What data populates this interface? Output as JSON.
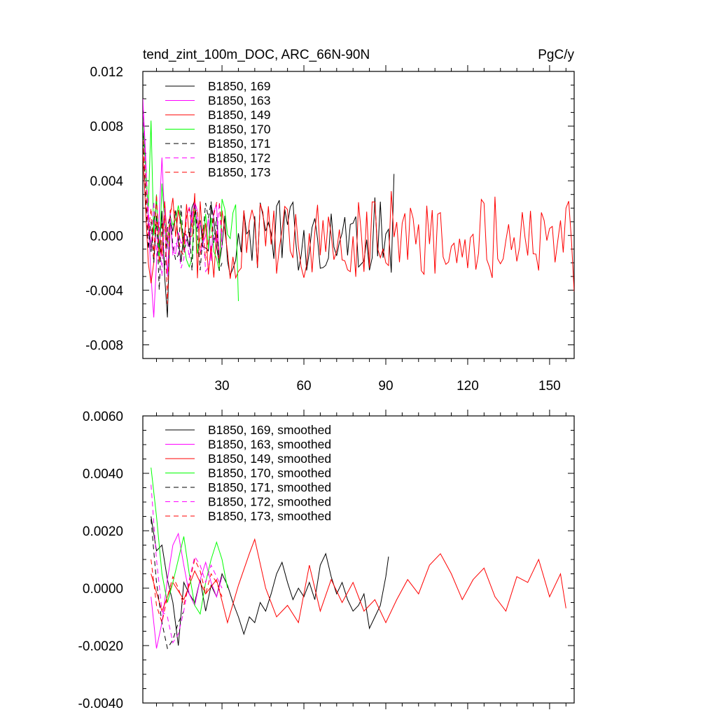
{
  "chart_data": [
    {
      "type": "line",
      "title_left": "tend_zint_100m_DOC, ARC_66N-90N",
      "title_right": "PgC/y",
      "xlabel": "",
      "ylabel": "",
      "xlim": [
        1,
        159
      ],
      "ylim": [
        -0.009,
        0.012
      ],
      "yticks": [
        -0.008,
        -0.004,
        0.0,
        0.004,
        0.008,
        0.012
      ],
      "ytick_labels": [
        "-0.008",
        "-0.004",
        "0.000",
        "0.004",
        "0.008",
        "0.012"
      ],
      "xticks": [
        30,
        60,
        90,
        120,
        150
      ],
      "xtick_labels": [
        "30",
        "60",
        "90",
        "120",
        "150"
      ],
      "legend": "top-left",
      "series": [
        {
          "name": "B1850, 169",
          "color": "#000000",
          "dash": "solid",
          "x_start": 1,
          "x_end": 93,
          "amplitude": 0.0028,
          "last": 0.0045,
          "first": [
            0.0082,
            0.0055,
            0.0012,
            -0.0012,
            0.001,
            0.0025,
            -0.001,
            0.0018,
            -0.003,
            -0.006
          ]
        },
        {
          "name": "B1850, 163",
          "color": "#ff00ff",
          "dash": "solid",
          "x_start": 1,
          "x_end": 30,
          "amplitude": 0.0025,
          "first": [
            0.01,
            0.006,
            0.001,
            -0.003,
            -0.006,
            -0.002,
            0.0015,
            0.0057,
            0.001,
            -0.003
          ]
        },
        {
          "name": "B1850, 149",
          "color": "#ff0000",
          "dash": "solid",
          "x_start": 1,
          "x_end": 159,
          "amplitude": 0.003,
          "last": -0.0041,
          "first": [
            0.006,
            0.002,
            -0.002,
            -0.0035,
            -0.002,
            0.001,
            0.0005,
            -0.0015,
            0.0025,
            -0.0005
          ]
        },
        {
          "name": "B1850, 170",
          "color": "#00ff00",
          "dash": "solid",
          "x_start": 1,
          "x_end": 36,
          "amplitude": 0.0025,
          "last": -0.0048,
          "first": [
            0.008,
            0.005,
            0.002,
            0.0084,
            0.0,
            0.003,
            -0.002,
            0.0038,
            0.001,
            -0.001
          ]
        },
        {
          "name": "B1850, 171",
          "color": "#000000",
          "dash": "dash",
          "x_start": 1,
          "x_end": 30,
          "amplitude": 0.0025,
          "first": [
            0.0075,
            0.003,
            -0.001,
            0.001,
            -0.002,
            0.0015,
            -0.004,
            0.001,
            -0.0025,
            0.0005
          ]
        },
        {
          "name": "B1850, 172",
          "color": "#ff00ff",
          "dash": "dash",
          "x_start": 1,
          "x_end": 30,
          "amplitude": 0.0025,
          "first": [
            0.0095,
            0.005,
            0.002,
            -0.001,
            0.0025,
            -0.0015,
            0.001,
            -0.003,
            0.002,
            -0.001
          ]
        },
        {
          "name": "B1850, 173",
          "color": "#ff0000",
          "dash": "dash",
          "x_start": 1,
          "x_end": 30,
          "amplitude": 0.0025,
          "first": [
            0.007,
            0.004,
            0.0,
            0.002,
            -0.0015,
            0.003,
            -0.002,
            0.0005,
            0.0015,
            -0.005
          ]
        }
      ]
    },
    {
      "type": "line",
      "title_left": "",
      "title_right": "",
      "xlabel": "",
      "ylabel": "",
      "xlim": [
        1,
        159
      ],
      "ylim": [
        -0.004,
        0.006
      ],
      "yticks": [
        -0.004,
        -0.002,
        0.0,
        0.002,
        0.004,
        0.006
      ],
      "ytick_labels": [
        "-0.0040",
        "-0.0020",
        "0.0000",
        "0.0020",
        "0.0040",
        "0.0060"
      ],
      "xticks": [
        30,
        60,
        90,
        120,
        150
      ],
      "xtick_labels": [],
      "legend": "top-left",
      "series": [
        {
          "name": "B1850, 169, smoothed",
          "color": "#000000",
          "dash": "solid",
          "x_start": 4,
          "x_end": 91,
          "points": [
            [
              4,
              0.0025
            ],
            [
              6,
              0.0013
            ],
            [
              8,
              0.0015
            ],
            [
              10,
              0.0003
            ],
            [
              12,
              -0.0005
            ],
            [
              14,
              -0.002
            ],
            [
              16,
              0.0002
            ],
            [
              18,
              -0.0002
            ],
            [
              20,
              -0.0005
            ],
            [
              22,
              0.0003
            ],
            [
              24,
              -0.0008
            ],
            [
              26,
              0.0001
            ],
            [
              28,
              -0.0003
            ],
            [
              30,
              0.0005
            ],
            [
              32,
              0.0001
            ],
            [
              34,
              -0.0005
            ],
            [
              36,
              -0.001
            ],
            [
              38,
              -0.0016
            ],
            [
              40,
              -0.001
            ],
            [
              42,
              -0.0012
            ],
            [
              44,
              -0.0005
            ],
            [
              46,
              -0.0008
            ],
            [
              48,
              -0.0002
            ],
            [
              50,
              0.0005
            ],
            [
              52,
              0.0009
            ],
            [
              54,
              0.0002
            ],
            [
              56,
              -0.0004
            ],
            [
              58,
              0.0
            ],
            [
              60,
              -0.0003
            ],
            [
              62,
              0.0002
            ],
            [
              64,
              -0.0004
            ],
            [
              66,
              0.0008
            ],
            [
              68,
              0.0012
            ],
            [
              70,
              0.0004
            ],
            [
              72,
              -0.0002
            ],
            [
              74,
              0.0002
            ],
            [
              76,
              -0.0004
            ],
            [
              78,
              -0.0008
            ],
            [
              80,
              -0.0006
            ],
            [
              82,
              -0.0002
            ],
            [
              84,
              -0.0014
            ],
            [
              86,
              -0.001
            ],
            [
              88,
              -0.0006
            ],
            [
              90,
              0.0004
            ],
            [
              91,
              0.0011
            ]
          ]
        },
        {
          "name": "B1850, 163, smoothed",
          "color": "#ff00ff",
          "dash": "solid",
          "x_start": 4,
          "x_end": 30,
          "points": [
            [
              4,
              -0.0003
            ],
            [
              6,
              -0.0021
            ],
            [
              8,
              -0.0012
            ],
            [
              10,
              0.0003
            ],
            [
              12,
              0.0015
            ],
            [
              14,
              0.0019
            ],
            [
              16,
              0.0008
            ],
            [
              18,
              -0.0002
            ],
            [
              20,
              -0.0006
            ],
            [
              22,
              0.0003
            ],
            [
              24,
              0.0009
            ],
            [
              26,
              0.0002
            ],
            [
              28,
              -0.0003
            ],
            [
              30,
              0.0004
            ]
          ]
        },
        {
          "name": "B1850, 149, smoothed",
          "color": "#ff0000",
          "dash": "solid",
          "x_start": 4,
          "x_end": 156,
          "points": [
            [
              4,
              0.0005
            ],
            [
              8,
              -0.0008
            ],
            [
              12,
              0.0002
            ],
            [
              16,
              -0.0004
            ],
            [
              20,
              0.0006
            ],
            [
              24,
              -0.0002
            ],
            [
              28,
              0.0003
            ],
            [
              32,
              -0.0012
            ],
            [
              36,
              0.0001
            ],
            [
              40,
              0.0012
            ],
            [
              42,
              0.0017
            ],
            [
              46,
              0.0
            ],
            [
              50,
              -0.001
            ],
            [
              54,
              -0.0006
            ],
            [
              58,
              -0.0012
            ],
            [
              62,
              0.0008
            ],
            [
              66,
              -0.0008
            ],
            [
              70,
              0.0003
            ],
            [
              74,
              -0.0005
            ],
            [
              78,
              0.0002
            ],
            [
              82,
              -0.0008
            ],
            [
              86,
              -0.0004
            ],
            [
              90,
              -0.0012
            ],
            [
              94,
              -0.0004
            ],
            [
              98,
              0.0003
            ],
            [
              102,
              -0.0002
            ],
            [
              106,
              0.0008
            ],
            [
              110,
              0.0012
            ],
            [
              114,
              0.0005
            ],
            [
              118,
              -0.0004
            ],
            [
              122,
              0.0003
            ],
            [
              126,
              0.0007
            ],
            [
              130,
              -0.0003
            ],
            [
              134,
              -0.0008
            ],
            [
              138,
              0.0004
            ],
            [
              142,
              0.0002
            ],
            [
              146,
              0.001
            ],
            [
              150,
              -0.0003
            ],
            [
              154,
              0.0005
            ],
            [
              156,
              -0.0007
            ]
          ]
        },
        {
          "name": "B1850, 170, smoothed",
          "color": "#00ff00",
          "dash": "solid",
          "x_start": 4,
          "x_end": 32,
          "points": [
            [
              4,
              0.0042
            ],
            [
              6,
              0.0025
            ],
            [
              8,
              0.0005
            ],
            [
              10,
              -0.0005
            ],
            [
              12,
              0.0002
            ],
            [
              14,
              0.001
            ],
            [
              16,
              0.0018
            ],
            [
              18,
              0.0005
            ],
            [
              20,
              -0.0006
            ],
            [
              22,
              -0.0009
            ],
            [
              24,
              0.0002
            ],
            [
              26,
              0.001
            ],
            [
              28,
              0.0016
            ],
            [
              30,
              0.001
            ],
            [
              32,
              0.0
            ]
          ]
        },
        {
          "name": "B1850, 171, smoothed",
          "color": "#000000",
          "dash": "dash",
          "x_start": 4,
          "x_end": 16,
          "points": [
            [
              4,
              0.0024
            ],
            [
              6,
              0.0002
            ],
            [
              8,
              -0.0012
            ],
            [
              10,
              -0.0021
            ],
            [
              12,
              -0.0018
            ],
            [
              14,
              -0.0012
            ],
            [
              16,
              -0.0008
            ]
          ]
        },
        {
          "name": "B1850, 172, smoothed",
          "color": "#ff00ff",
          "dash": "dash",
          "x_start": 4,
          "x_end": 30,
          "points": [
            [
              4,
              0.0036
            ],
            [
              6,
              0.001
            ],
            [
              8,
              -0.0008
            ],
            [
              10,
              -0.001
            ],
            [
              12,
              -0.0019
            ],
            [
              14,
              -0.0016
            ],
            [
              16,
              -0.0008
            ],
            [
              18,
              0.0003
            ],
            [
              20,
              0.0011
            ],
            [
              22,
              0.0008
            ],
            [
              24,
              0.0002
            ],
            [
              26,
              0.0008
            ],
            [
              28,
              0.0004
            ],
            [
              30,
              0.0
            ]
          ]
        },
        {
          "name": "B1850, 173, smoothed",
          "color": "#ff0000",
          "dash": "dash",
          "x_start": 4,
          "x_end": 30,
          "points": [
            [
              4,
              0.001
            ],
            [
              6,
              -0.0006
            ],
            [
              8,
              -0.0012
            ],
            [
              10,
              -0.0003
            ],
            [
              12,
              0.0004
            ],
            [
              14,
              0.0
            ],
            [
              16,
              -0.0006
            ],
            [
              18,
              0.0002
            ],
            [
              20,
              0.001
            ],
            [
              22,
              0.0006
            ],
            [
              24,
              -0.0002
            ],
            [
              26,
              0.0005
            ],
            [
              28,
              0.0002
            ],
            [
              30,
              -0.0003
            ]
          ]
        }
      ]
    }
  ]
}
